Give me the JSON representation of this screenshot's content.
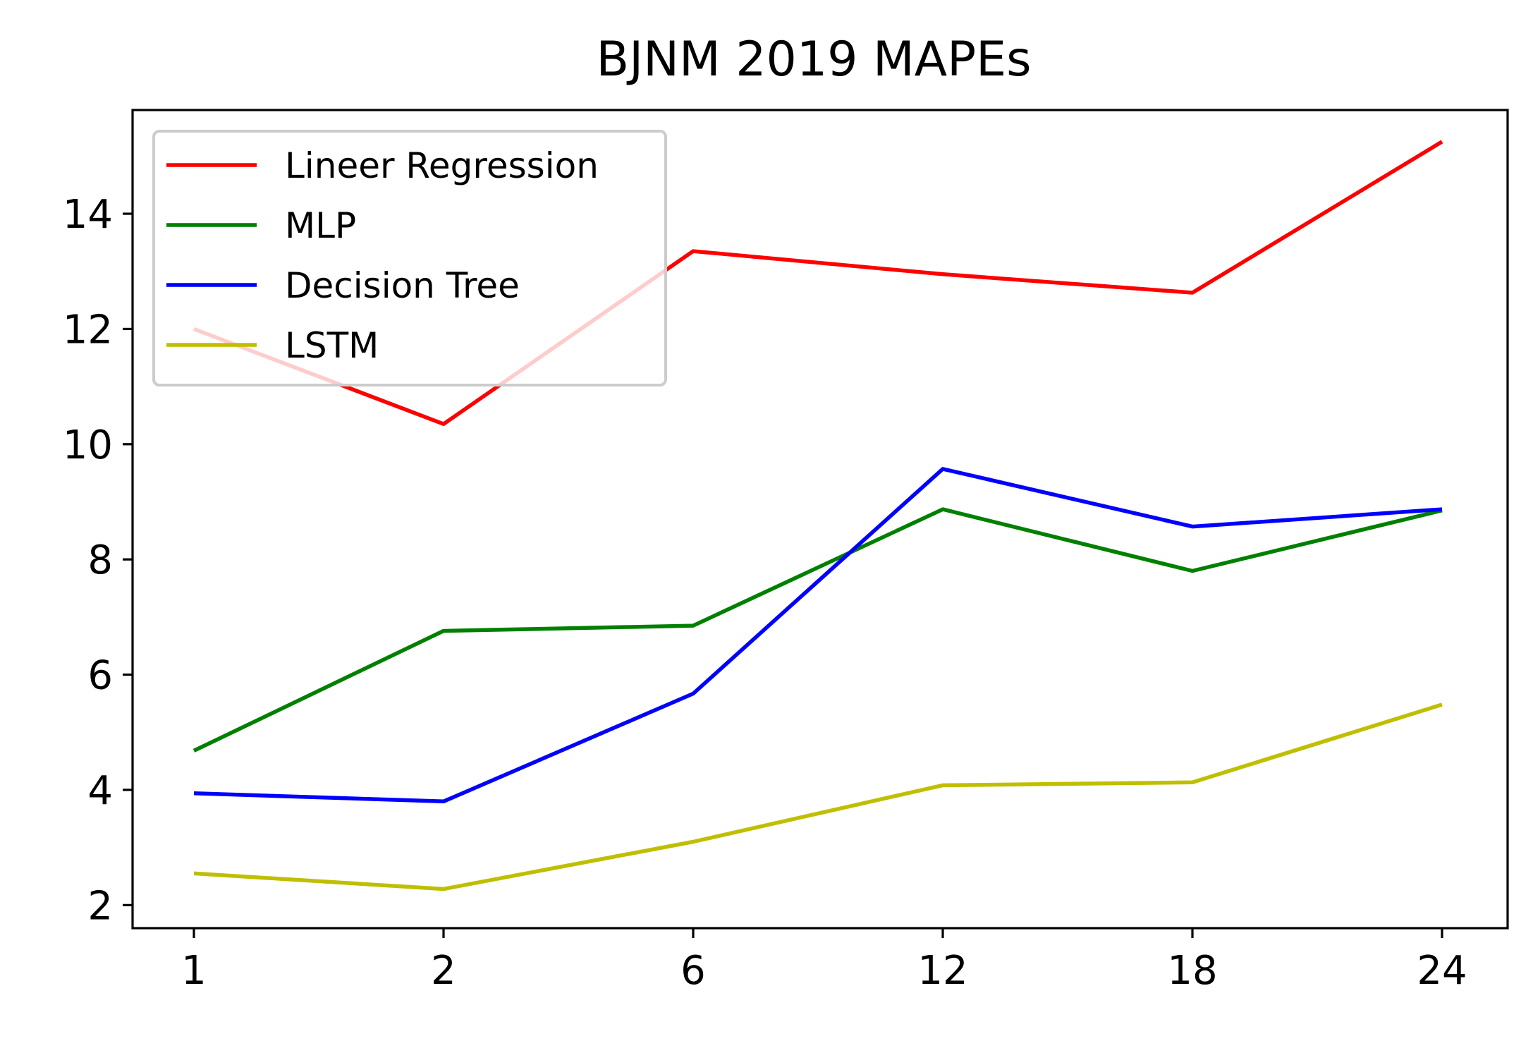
{
  "chart_data": {
    "type": "line",
    "title": "BJNM  2019 MAPEs",
    "xlabel": "",
    "ylabel": "",
    "categories": [
      "1",
      "2",
      "6",
      "12",
      "18",
      "24"
    ],
    "ylim": [
      1.6,
      15.8
    ],
    "yticks": [
      2,
      4,
      6,
      8,
      10,
      12,
      14
    ],
    "grid": false,
    "legend_position": "upper-left",
    "series": [
      {
        "name": "Lineer Regression",
        "color": "#ff0000",
        "values": [
          12.0,
          10.35,
          13.35,
          12.95,
          12.63,
          15.25
        ]
      },
      {
        "name": "MLP",
        "color": "#008000",
        "values": [
          4.68,
          6.76,
          6.85,
          8.87,
          7.8,
          8.85
        ]
      },
      {
        "name": "Decision Tree",
        "color": "#0000ff",
        "values": [
          3.94,
          3.8,
          5.67,
          9.57,
          8.57,
          8.87
        ]
      },
      {
        "name": "LSTM",
        "color": "#bfbf00",
        "values": [
          2.55,
          2.28,
          3.1,
          4.08,
          4.13,
          5.48
        ]
      }
    ]
  }
}
